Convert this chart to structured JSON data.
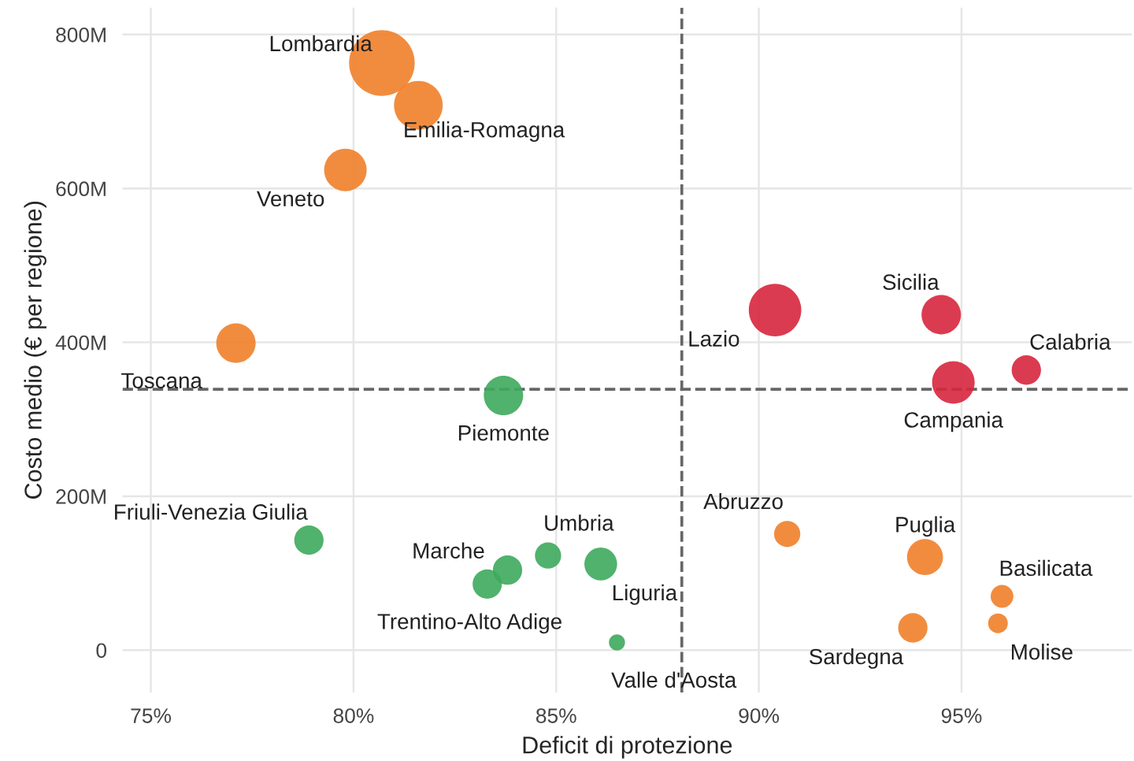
{
  "chart_data": {
    "type": "bubble",
    "xlabel": "Deficit di protezione",
    "ylabel": "Costo medio (€ per regione)",
    "x": [
      80.7,
      81.6,
      79.8,
      77.1,
      83.7,
      78.9,
      83.8,
      83.3,
      84.8,
      86.1,
      86.5,
      90.4,
      94.5,
      96.6,
      94.8,
      90.7,
      94.1,
      96.0,
      95.9,
      93.8
    ],
    "values": [
      763,
      708,
      624,
      399,
      331,
      143,
      104,
      86,
      123,
      112,
      10,
      442,
      436,
      364,
      348,
      151,
      121,
      70,
      35,
      29
    ],
    "sizes": [
      1,
      0.55,
      0.42,
      0.36,
      0.36,
      0.2,
      0.2,
      0.2,
      0.16,
      0.25,
      0.06,
      0.64,
      0.36,
      0.2,
      0.42,
      0.16,
      0.3,
      0.12,
      0.09,
      0.2
    ],
    "colors": [
      "#f07f2a",
      "#f07f2a",
      "#f07f2a",
      "#f07f2a",
      "#3daa5c",
      "#3daa5c",
      "#3daa5c",
      "#3daa5c",
      "#3daa5c",
      "#3daa5c",
      "#3daa5c",
      "#d7263d",
      "#d7263d",
      "#d7263d",
      "#d7263d",
      "#f07f2a",
      "#f07f2a",
      "#f07f2a",
      "#f07f2a",
      "#f07f2a"
    ],
    "annotations": [
      {
        "text": "Lombardia",
        "x": 80.7,
        "y": 763
      },
      {
        "text": "Emilia-Romagna",
        "x": 81.6,
        "y": 708
      },
      {
        "text": "Veneto",
        "x": 79.8,
        "y": 624
      },
      {
        "text": "Toscana",
        "x": 77.1,
        "y": 399
      },
      {
        "text": "Piemonte",
        "x": 83.7,
        "y": 331
      },
      {
        "text": "Friuli-Venezia Giulia",
        "x": 78.9,
        "y": 143
      },
      {
        "text": "Marche",
        "x": 83.8,
        "y": 104
      },
      {
        "text": "Trentino-Alto Adige",
        "x": 83.3,
        "y": 86
      },
      {
        "text": "Umbria",
        "x": 84.8,
        "y": 123
      },
      {
        "text": "Liguria",
        "x": 86.1,
        "y": 112
      },
      {
        "text": "Valle d'Aosta",
        "x": 86.5,
        "y": 10
      },
      {
        "text": "Lazio",
        "x": 90.4,
        "y": 442
      },
      {
        "text": "Sicilia",
        "x": 94.5,
        "y": 436
      },
      {
        "text": "Calabria",
        "x": 96.6,
        "y": 364
      },
      {
        "text": "Campania",
        "x": 94.8,
        "y": 348
      },
      {
        "text": "Abruzzo",
        "x": 90.7,
        "y": 151
      },
      {
        "text": "Puglia",
        "x": 94.1,
        "y": 121
      },
      {
        "text": "Basilicata",
        "x": 96.0,
        "y": 70
      },
      {
        "text": "Molise",
        "x": 95.9,
        "y": 35
      },
      {
        "text": "Sardegna",
        "x": 93.8,
        "y": 29
      }
    ],
    "ref_lines": [
      {
        "axis": "x",
        "value": 88.1,
        "line_style": "dashed",
        "color": "#666666"
      },
      {
        "axis": "y",
        "value": 339,
        "line_style": "dashed",
        "color": "#666666"
      }
    ],
    "xlim": [
      74.3,
      99.2
    ],
    "ylim": [
      -55,
      835
    ],
    "xticks": [
      {
        "value": 75,
        "label": "75%"
      },
      {
        "value": 80,
        "label": "80%"
      },
      {
        "value": 85,
        "label": "85%"
      },
      {
        "value": 90,
        "label": "90%"
      },
      {
        "value": 95,
        "label": "95%"
      }
    ],
    "yticks": [
      0,
      {
        "value": 200,
        "label": "200M"
      },
      {
        "value": 400,
        "label": "400M"
      },
      {
        "value": 600,
        "label": "600M"
      },
      {
        "value": 800,
        "label": "800M"
      }
    ],
    "grid": true
  }
}
